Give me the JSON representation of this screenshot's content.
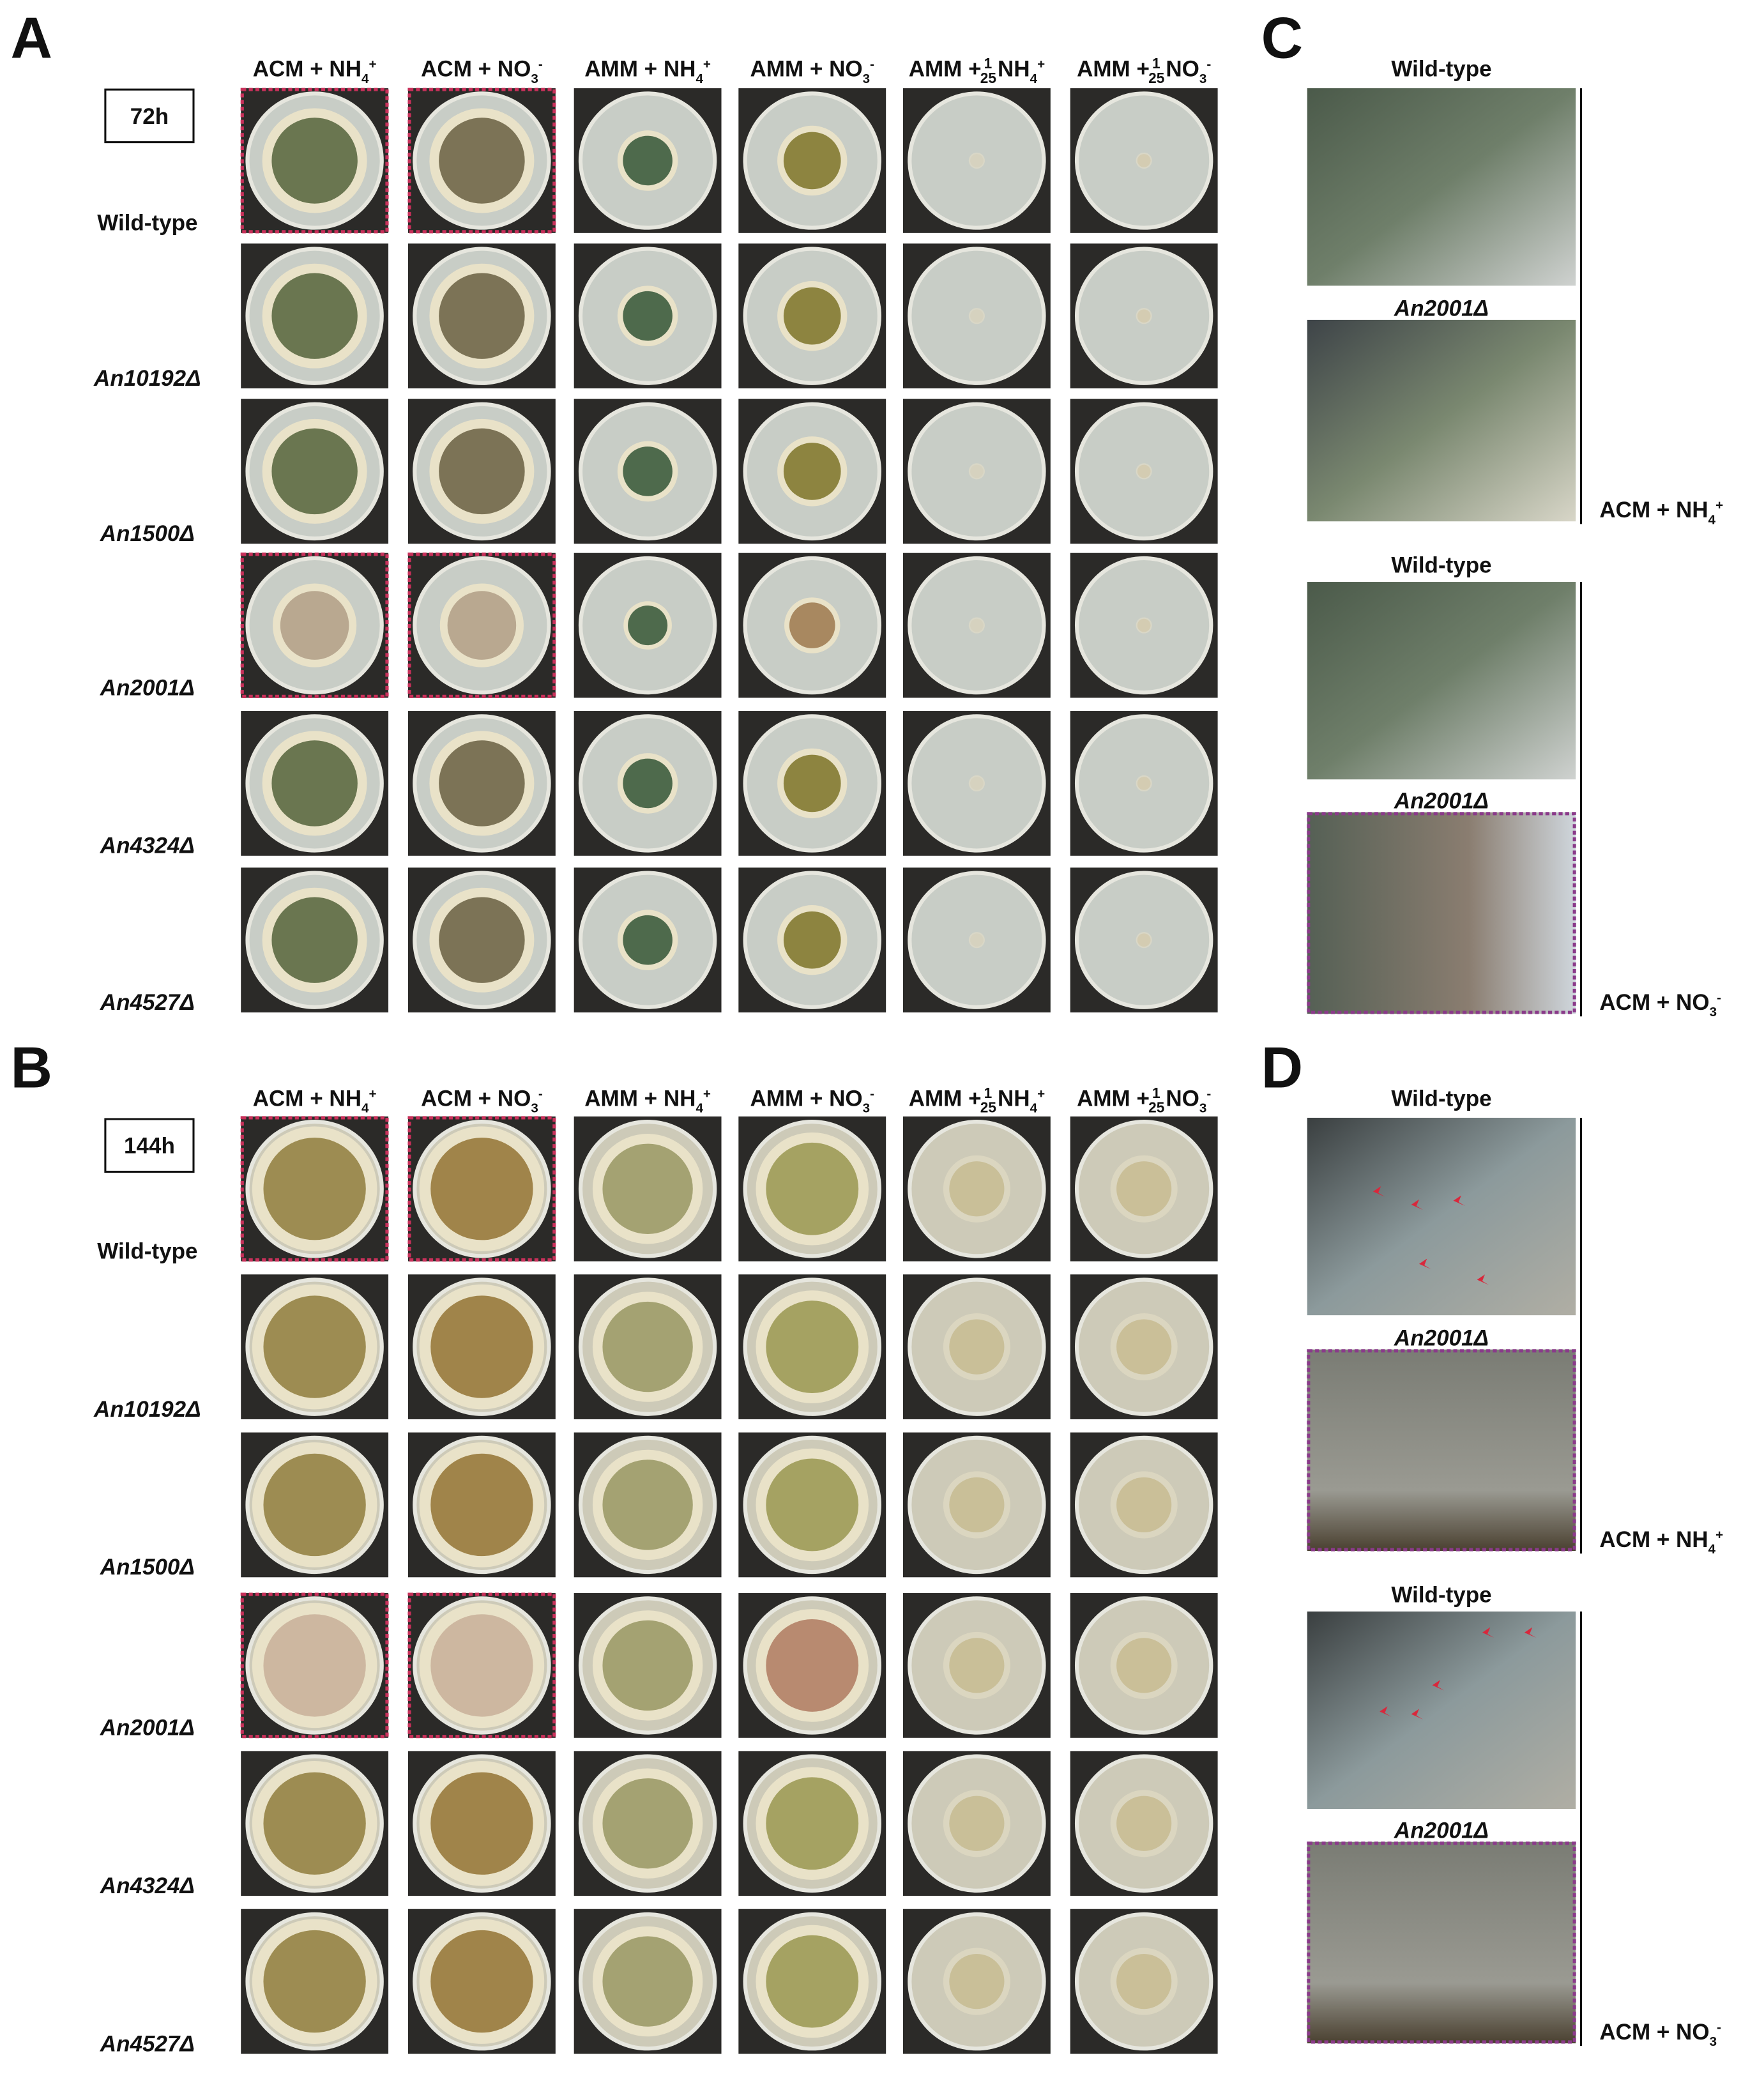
{
  "panels": {
    "A": {
      "label": "A",
      "time": "72h",
      "columns": [
        {
          "main": "ACM + NH",
          "sub": "4",
          "sup": "+"
        },
        {
          "main": "ACM + NO",
          "sub": "3",
          "sup": "-"
        },
        {
          "main": "AMM + NH",
          "sub": "4",
          "sup": "+"
        },
        {
          "main": "AMM + NO",
          "sub": "3",
          "sup": "-"
        },
        {
          "main": "AMM +",
          "num": "1",
          "den": "25",
          "ion": "NH",
          "sub": "4",
          "sup": "+"
        },
        {
          "main": "AMM +",
          "num": "1",
          "den": "25",
          "ion": "NO",
          "sub": "3",
          "sup": "-"
        }
      ],
      "rows": [
        "Wild-type",
        "An10192Δ",
        "An1500Δ",
        "An2001Δ",
        "An4324Δ",
        "An4527Δ"
      ]
    },
    "B": {
      "label": "B",
      "time": "144h",
      "columns": [
        {
          "main": "ACM + NH",
          "sub": "4",
          "sup": "+"
        },
        {
          "main": "ACM + NO",
          "sub": "3",
          "sup": "-"
        },
        {
          "main": "AMM + NH",
          "sub": "4",
          "sup": "+"
        },
        {
          "main": "AMM + NO",
          "sub": "3",
          "sup": "-"
        },
        {
          "main": "AMM +",
          "num": "1",
          "den": "25",
          "ion": "NH",
          "sub": "4",
          "sup": "+"
        },
        {
          "main": "AMM +",
          "num": "1",
          "den": "25",
          "ion": "NO",
          "sub": "3",
          "sup": "-"
        }
      ],
      "rows": [
        "Wild-type",
        "An10192Δ",
        "An1500Δ",
        "An2001Δ",
        "An4324Δ",
        "An4527Δ"
      ]
    },
    "C": {
      "label": "C",
      "groups": [
        {
          "captions": [
            "Wild-type",
            "An2001Δ"
          ],
          "condition": {
            "main": "ACM + NH",
            "sub": "4",
            "sup": "+"
          }
        },
        {
          "captions": [
            "Wild-type",
            "An2001Δ"
          ],
          "condition": {
            "main": "ACM + NO",
            "sub": "3",
            "sup": "-"
          }
        }
      ]
    },
    "D": {
      "label": "D",
      "groups": [
        {
          "captions": [
            "Wild-type",
            "An2001Δ"
          ],
          "condition": {
            "main": "ACM + NH",
            "sub": "4",
            "sup": "+"
          }
        },
        {
          "captions": [
            "Wild-type",
            "An2001Δ"
          ],
          "condition": {
            "main": "ACM + NO",
            "sub": "3",
            "sup": "-"
          }
        }
      ]
    }
  }
}
